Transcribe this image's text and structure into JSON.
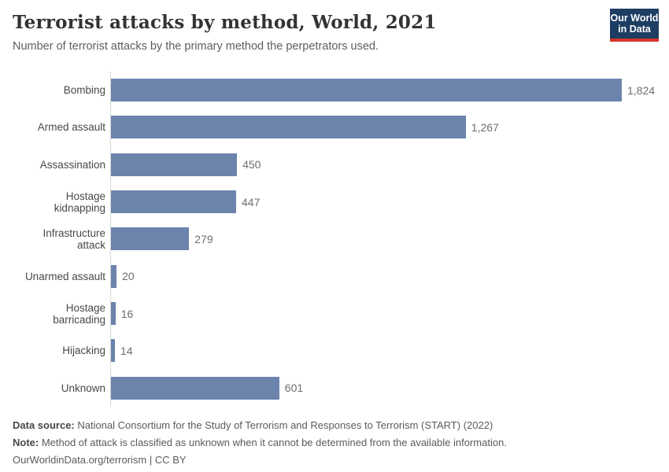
{
  "header": {
    "title": "Terrorist attacks by method, World, 2021",
    "subtitle": "Number of terrorist attacks by the primary method the perpetrators used."
  },
  "logo": {
    "line1": "Our World",
    "line2": "in Data",
    "bg_color": "#1d3d63",
    "stripe_color": "#d8352a"
  },
  "chart_data": {
    "type": "bar",
    "orientation": "horizontal",
    "title": "Terrorist attacks by method, World, 2021",
    "xlabel": "",
    "ylabel": "",
    "xlim": [
      0,
      1824
    ],
    "grid": false,
    "legend": false,
    "bar_color": "#6c83ac",
    "categories": [
      "Bombing",
      "Armed assault",
      "Assassination",
      "Hostage kidnapping",
      "Infrastructure attack",
      "Unarmed assault",
      "Hostage barricading",
      "Hijacking",
      "Unknown"
    ],
    "values": [
      1824,
      1267,
      450,
      447,
      279,
      20,
      16,
      14,
      601
    ],
    "value_labels": [
      "1,824",
      "1,267",
      "450",
      "447",
      "279",
      "20",
      "16",
      "14",
      "601"
    ]
  },
  "footer": {
    "datasource_label": "Data source:",
    "datasource_text": " National Consortium for the Study of Terrorism and Responses to Terrorism (START) (2022)",
    "note_label": "Note:",
    "note_text": " Method of attack is classified as unknown when it cannot be determined from the available information.",
    "license_text": "OurWorldinData.org/terrorism | CC BY"
  }
}
